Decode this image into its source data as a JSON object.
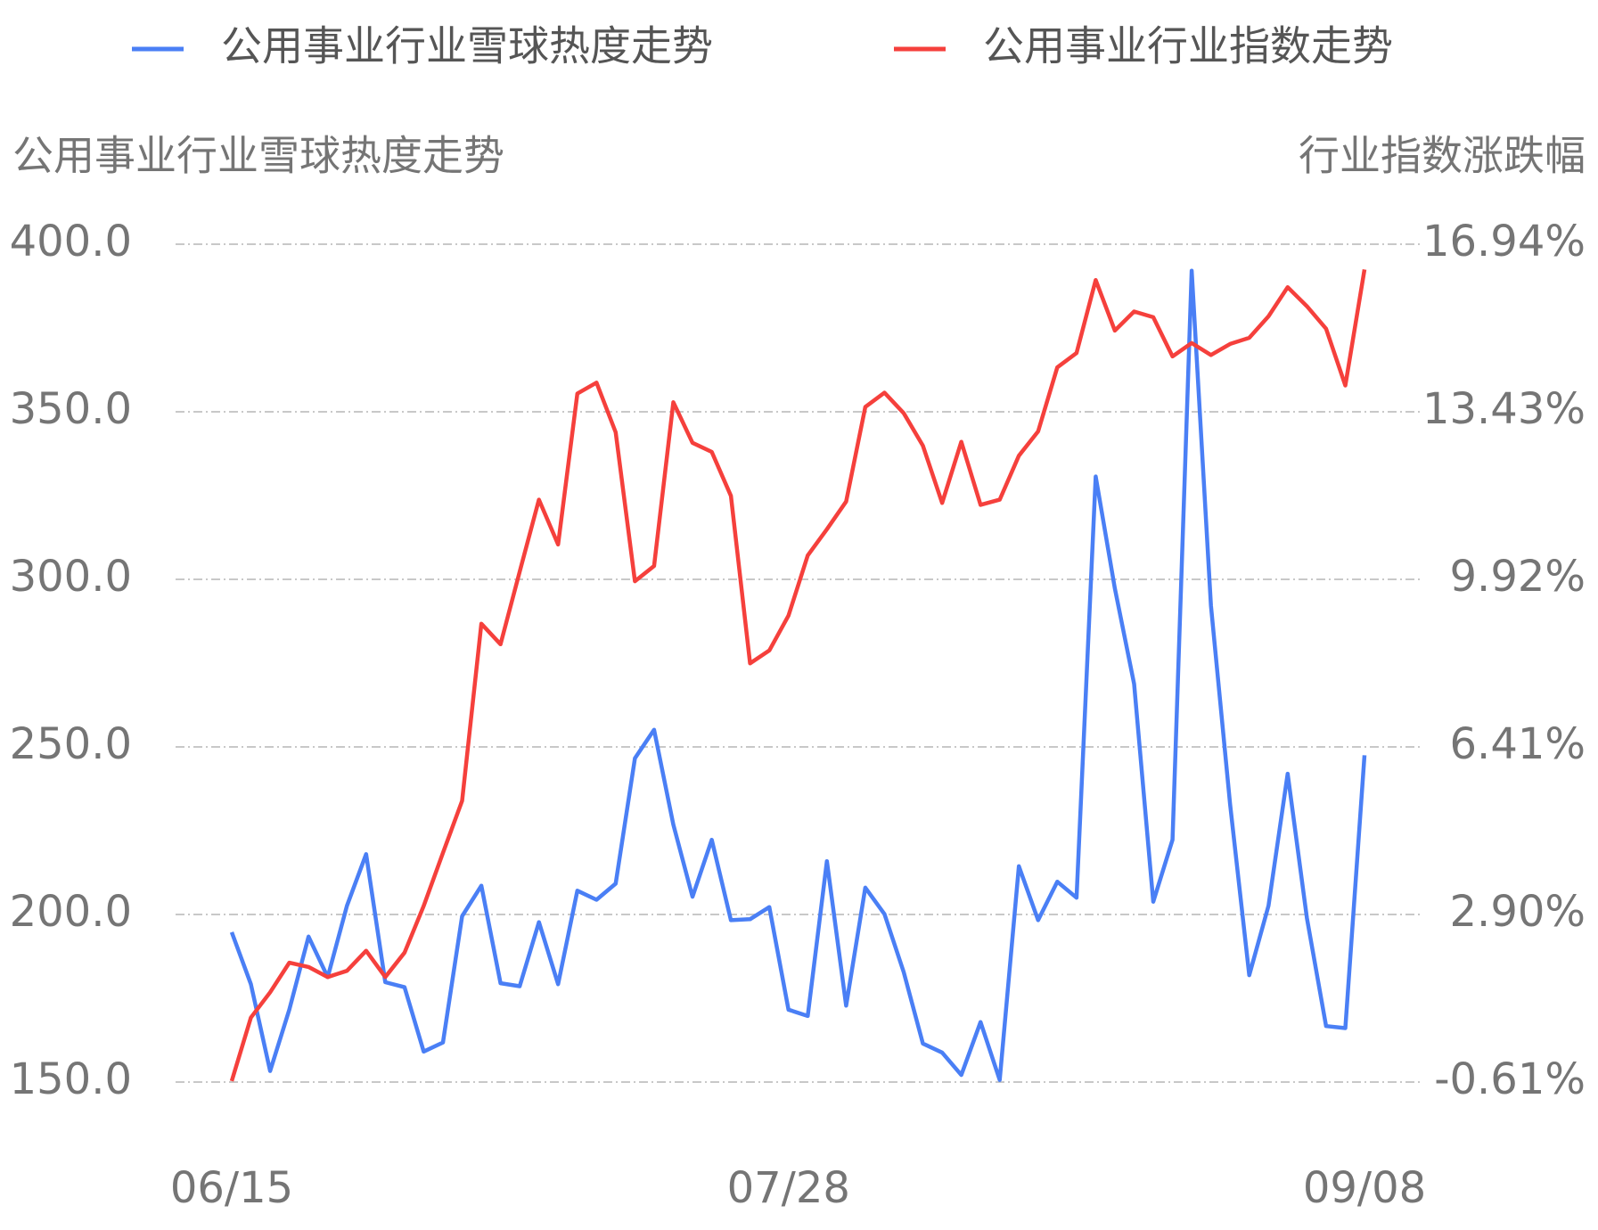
{
  "chart_data": {
    "type": "line",
    "y_label": "公用事业行业雪球热度走势",
    "y2_label": "行业指数涨跌幅",
    "categories": [
      "06/15",
      null,
      null,
      null,
      null,
      null,
      null,
      null,
      null,
      null,
      null,
      null,
      null,
      null,
      null,
      null,
      null,
      null,
      null,
      null,
      null,
      null,
      null,
      null,
      null,
      null,
      null,
      null,
      null,
      "07/28",
      null,
      null,
      null,
      null,
      null,
      null,
      null,
      null,
      null,
      null,
      null,
      null,
      null,
      null,
      null,
      null,
      null,
      null,
      null,
      null,
      null,
      null,
      null,
      null,
      null,
      null,
      null,
      null,
      null,
      "09/08"
    ],
    "series": [
      {
        "name": "公用事业行业雪球热度走势",
        "color": "#4a7ff5",
        "axis": "y",
        "values": [
          194.7,
          179.2,
          153.3,
          171.6,
          193.4,
          181.3,
          202.6,
          218.0,
          179.8,
          178.3,
          159.1,
          161.8,
          199.5,
          208.6,
          179.5,
          178.6,
          197.7,
          179.2,
          207.1,
          204.4,
          209.2,
          246.6,
          255.1,
          226.8,
          205.3,
          222.3,
          198.3,
          198.6,
          202.2,
          171.6,
          169.7,
          215.9,
          172.8,
          208.0,
          200.1,
          182.8,
          161.5,
          158.8,
          152.1,
          167.9,
          150.6,
          214.4,
          198.3,
          209.8,
          205.0,
          330.7,
          297.3,
          268.8,
          203.8,
          222.3,
          392.1,
          292.2,
          232.9,
          181.9,
          202.6,
          242.0,
          198.9,
          166.7,
          166.1,
          247.5
        ]
      },
      {
        "name": "公用事业行业指数走势",
        "color": "#f5403c",
        "axis": "y2",
        "values": [
          -0.59,
          0.74,
          1.27,
          1.89,
          1.8,
          1.59,
          1.72,
          2.14,
          1.59,
          2.1,
          3.08,
          4.19,
          5.28,
          8.99,
          8.56,
          10.08,
          11.59,
          10.65,
          13.81,
          14.04,
          13.0,
          9.88,
          10.2,
          13.63,
          12.78,
          12.59,
          11.67,
          8.16,
          8.43,
          9.16,
          10.42,
          10.97,
          11.55,
          13.53,
          13.83,
          13.4,
          12.72,
          11.52,
          12.8,
          11.48,
          11.59,
          12.51,
          13.02,
          14.36,
          14.66,
          16.19,
          15.13,
          15.53,
          15.41,
          14.59,
          14.87,
          14.62,
          14.85,
          14.98,
          15.43,
          16.04,
          15.64,
          15.17,
          13.98,
          16.41
        ]
      }
    ],
    "ylim": [
      150,
      400
    ],
    "yticks": [
      {
        "value": 150,
        "label": "150.0"
      },
      {
        "value": 200,
        "label": "200.0"
      },
      {
        "value": 250,
        "label": "250.0"
      },
      {
        "value": 300,
        "label": "300.0"
      },
      {
        "value": 350,
        "label": "350.0"
      },
      {
        "value": 400,
        "label": "400.0"
      }
    ],
    "y2lim": [
      -0.61,
      16.94
    ],
    "y2ticks": [
      {
        "value": -0.61,
        "label": "-0.61%"
      },
      {
        "value": 2.9,
        "label": "2.90%"
      },
      {
        "value": 6.41,
        "label": "6.41%"
      },
      {
        "value": 9.92,
        "label": "9.92%"
      },
      {
        "value": 13.43,
        "label": "13.43%"
      },
      {
        "value": 16.94,
        "label": "16.94%"
      }
    ],
    "grid": true,
    "legend": "top"
  }
}
